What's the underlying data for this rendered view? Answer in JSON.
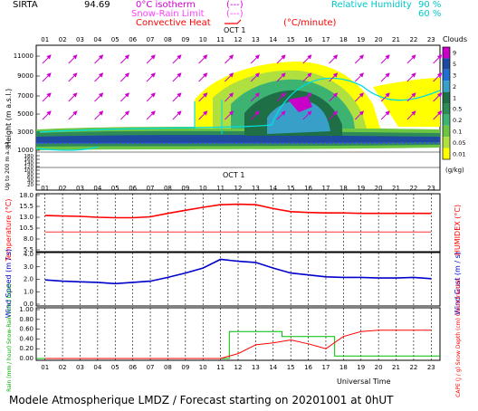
{
  "header": {
    "site": "SIRTA",
    "coords": "94.69",
    "isotherm_label": "0°C isotherm",
    "isotherm_symbol": "(---)",
    "snow_rain_label": "Snow-Rain Limit",
    "snow_rain_symbol": "(---)",
    "convective_label": "Convective Heat",
    "convective_unit": "(°C/minute)",
    "rh_label": "Relative Humidity",
    "rh_90": "90 %",
    "rh_60": "60 %"
  },
  "footer": {
    "title": "Modele Atmospherique LMDZ / Forecast starting on 20201001 at 0hUT",
    "universal_time": "Universal Time"
  },
  "hours": [
    "01",
    "02",
    "03",
    "04",
    "05",
    "06",
    "07",
    "08",
    "09",
    "10",
    "11",
    "12",
    "13",
    "14",
    "15",
    "16",
    "17",
    "18",
    "19",
    "20",
    "21",
    "22",
    "23"
  ],
  "date_label": "OCT   1",
  "chart_data": [
    {
      "type": "heatmap",
      "title": "Clouds",
      "ylabel": "Height (m a.s.l.)",
      "ylabel_low": "Up to 200 m a.g.l.",
      "y_ticks": [
        "11000",
        "9000",
        "7000",
        "5000",
        "3000",
        "1000",
        "180",
        "160",
        "140",
        "120",
        "100",
        "80",
        "60",
        "40",
        "20"
      ],
      "colorbar_ticks": [
        "9",
        "5",
        "3",
        "2",
        "1",
        "0.5",
        "0.2",
        "0.1",
        "0.05",
        "0.01"
      ],
      "colorbar_unit": "(g/kg)",
      "colorbar_colors": [
        "#c800c8",
        "#1e4aa0",
        "#1e6fd0",
        "#38a0c8",
        "#1e6e46",
        "#2e8b57",
        "#3cb371",
        "#6cc644",
        "#b0e040",
        "#ffff00"
      ]
    },
    {
      "type": "line",
      "ylabel": "Temperature (°C)",
      "ylabel_right": "HUMIDEX (°C)",
      "y_ticks": [
        "18.0",
        "15.5",
        "13.0",
        "10.5",
        "8.0",
        "5.5"
      ],
      "ylim": [
        5.5,
        18.0
      ],
      "series": [
        {
          "color": "#ff0000",
          "values": [
            13.4,
            13.3,
            13.2,
            13.0,
            12.9,
            12.9,
            13.1,
            13.9,
            14.6,
            15.3,
            15.9,
            16.0,
            15.9,
            15.0,
            14.3,
            14.1,
            14.0,
            14.0,
            13.9,
            13.9,
            13.9,
            13.9,
            13.9
          ]
        },
        {
          "color": "#ff3030",
          "values": [
            9.6,
            9.6,
            9.6,
            9.6,
            9.6,
            9.6,
            9.6,
            9.6,
            9.6,
            9.6,
            9.6,
            9.6,
            9.6,
            9.6,
            9.6,
            9.6,
            9.6,
            9.6,
            9.6,
            9.6,
            9.6,
            9.6,
            9.6
          ]
        }
      ]
    },
    {
      "type": "line",
      "ylabel": "Wind Speed (m / s)",
      "ylabel_right": "Wind Gust (m / s)",
      "y_ticks": [
        "4.0",
        "3.0",
        "2.0",
        "1.0",
        "0.0"
      ],
      "ylim": [
        0,
        4
      ],
      "series": [
        {
          "color": "#0000cc",
          "values": [
            1.95,
            1.85,
            1.8,
            1.75,
            1.65,
            1.75,
            1.85,
            2.15,
            2.5,
            2.9,
            3.6,
            3.45,
            3.35,
            2.9,
            2.5,
            2.35,
            2.2,
            2.15,
            2.15,
            2.1,
            2.1,
            2.15,
            2.05
          ]
        }
      ]
    },
    {
      "type": "line",
      "ylabel": "Rain (mm / hour) Snow-Rain (cm / hour)",
      "ylabel_right": "CAPE (J / g) Snow Depth (cm) Cloud fraction",
      "y_ticks": [
        "1.00",
        "0.80",
        "0.60",
        "0.40",
        "0.20",
        "0.00"
      ],
      "ylim": [
        0,
        1
      ],
      "series": [
        {
          "color": "#00bb00",
          "values": [
            0,
            0,
            0,
            0,
            0,
            0,
            0,
            0,
            0,
            0,
            0,
            0.55,
            0.55,
            0.55,
            0.45,
            0.45,
            0.45,
            0.05,
            0.05,
            0.05,
            0.05,
            0.05,
            0.05
          ]
        },
        {
          "color": "#ff0000",
          "values": [
            0,
            0,
            0,
            0,
            0,
            0,
            0,
            0,
            0,
            0,
            0,
            0.1,
            0.28,
            0.32,
            0.38,
            0.3,
            0.2,
            0.45,
            0.55,
            0.58,
            0.58,
            0.58,
            0.58
          ]
        }
      ]
    }
  ]
}
